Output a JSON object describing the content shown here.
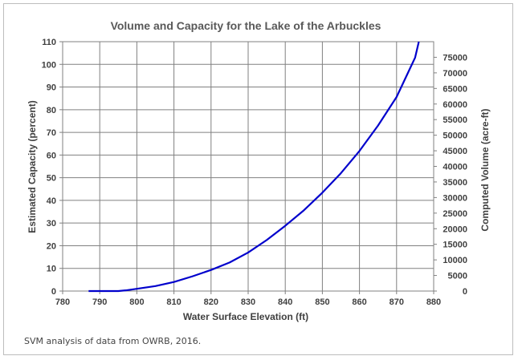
{
  "chart_data": {
    "type": "line",
    "title": "Volume and Capacity for the Lake of the Arbuckles",
    "xlabel": "Water Surface Elevation (ft)",
    "ylabel": "Estimated Capacity (percent)",
    "y2label": "Computed Volume (acre-ft)",
    "xlim": [
      780,
      880
    ],
    "ylim": [
      0,
      110
    ],
    "y2lim": [
      0,
      80000
    ],
    "xticks": [
      "780",
      "790",
      "800",
      "810",
      "820",
      "830",
      "840",
      "850",
      "860",
      "870",
      "880"
    ],
    "yticks": [
      "0",
      "10",
      "20",
      "30",
      "40",
      "50",
      "60",
      "70",
      "80",
      "90",
      "100",
      "110"
    ],
    "y2ticks": [
      "0",
      "5000",
      "10000",
      "15000",
      "20000",
      "25000",
      "30000",
      "35000",
      "40000",
      "45000",
      "50000",
      "55000",
      "60000",
      "65000",
      "70000",
      "75000"
    ],
    "grid": true,
    "series": [
      {
        "color": "#0000cc",
        "x": [
          787,
          790,
          795,
          797,
          800,
          805,
          810,
          815,
          820,
          825,
          830,
          835,
          840,
          845,
          850,
          855,
          860,
          865,
          870,
          875,
          876
        ],
        "y": [
          0,
          0,
          0,
          0.3,
          1.0,
          2.2,
          4.0,
          6.5,
          9.3,
          12.6,
          17.0,
          22.5,
          28.8,
          35.6,
          43.4,
          52.0,
          61.8,
          73.0,
          85.6,
          103.0,
          110
        ]
      }
    ]
  },
  "note": "SVM analysis of data from OWRB, 2016."
}
